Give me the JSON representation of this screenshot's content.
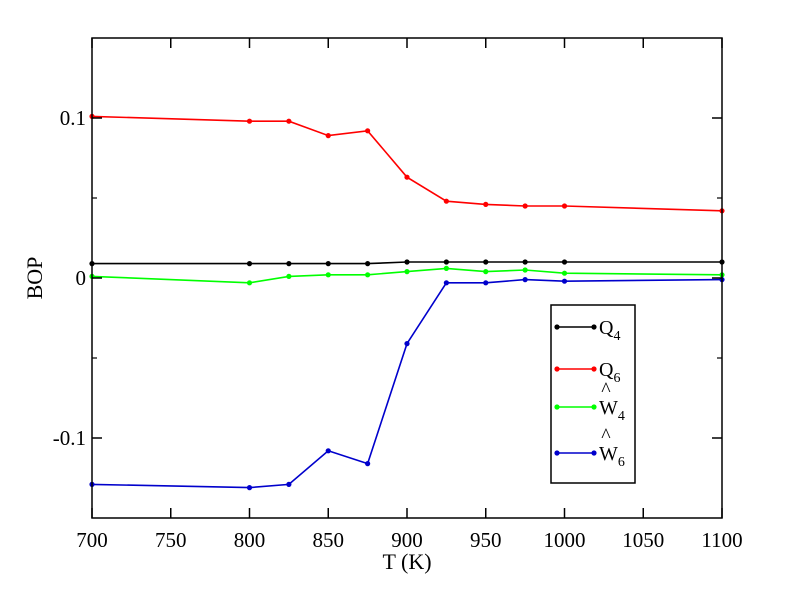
{
  "chart_data": {
    "type": "line",
    "xlabel": "T (K)",
    "ylabel": "BOP",
    "xlim": [
      700,
      1100
    ],
    "ylim": [
      -0.15,
      0.15
    ],
    "grid": false,
    "legend_position": "lower-right",
    "x_ticks": [
      700,
      750,
      800,
      850,
      900,
      950,
      1000,
      1050,
      1100
    ],
    "x_tick_labels": [
      "700",
      "750",
      "800",
      "850",
      "900",
      "950",
      "1000",
      "1050",
      "1100"
    ],
    "y_ticks": [
      -0.1,
      0,
      0.1
    ],
    "y_tick_labels": [
      "-0.1",
      "0",
      "0.1"
    ],
    "series": [
      {
        "name": "Q4",
        "legend_base": "Q",
        "legend_sub": "4",
        "legend_hat": false,
        "color": "#000000",
        "x": [
          700,
          800,
          825,
          850,
          875,
          900,
          925,
          950,
          975,
          1000,
          1100
        ],
        "y": [
          0.009,
          0.009,
          0.009,
          0.009,
          0.009,
          0.01,
          0.01,
          0.01,
          0.01,
          0.01,
          0.01
        ]
      },
      {
        "name": "Q6",
        "legend_base": "Q",
        "legend_sub": "6",
        "legend_hat": false,
        "color": "#ff0000",
        "x": [
          700,
          800,
          825,
          850,
          875,
          900,
          925,
          950,
          975,
          1000,
          1100
        ],
        "y": [
          0.101,
          0.098,
          0.098,
          0.089,
          0.092,
          0.063,
          0.048,
          0.046,
          0.045,
          0.045,
          0.042
        ]
      },
      {
        "name": "W4",
        "legend_base": "W",
        "legend_sub": "4",
        "legend_hat": true,
        "color": "#00ff00",
        "x": [
          700,
          800,
          825,
          850,
          875,
          900,
          925,
          950,
          975,
          1000,
          1100
        ],
        "y": [
          0.001,
          -0.003,
          0.001,
          0.002,
          0.002,
          0.004,
          0.006,
          0.004,
          0.005,
          0.003,
          0.002
        ]
      },
      {
        "name": "W6",
        "legend_base": "W",
        "legend_sub": "6",
        "legend_hat": true,
        "color": "#0000cc",
        "x": [
          700,
          800,
          825,
          850,
          875,
          900,
          925,
          950,
          975,
          1000,
          1100
        ],
        "y": [
          -0.129,
          -0.131,
          -0.129,
          -0.108,
          -0.116,
          -0.041,
          -0.003,
          -0.003,
          -0.001,
          -0.002,
          -0.001
        ]
      }
    ]
  }
}
